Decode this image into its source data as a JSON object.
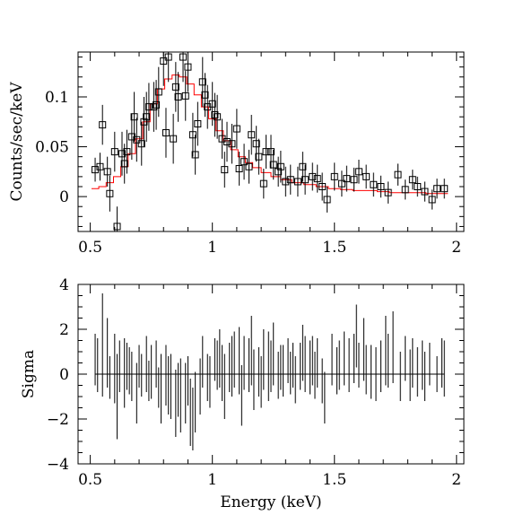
{
  "chart_data": [
    {
      "type": "scatter",
      "panel": "spectrum",
      "xlabel": "",
      "ylabel": "Counts/sec/keV",
      "xlim": [
        0.45,
        2.03
      ],
      "ylim": [
        -0.035,
        0.145
      ],
      "xticks": [
        "0.5",
        "1",
        "1.5",
        "2"
      ],
      "xtick_values": [
        0.5,
        1.0,
        1.5,
        2.0
      ],
      "yticks": [
        "0",
        "0.05",
        "0.1"
      ],
      "ytick_values": [
        0,
        0.05,
        0.1
      ],
      "grid": false,
      "series": [
        {
          "role": "data",
          "marker": "open-square",
          "color": "#000000",
          "points": [
            [
              0.52,
              0.027,
              0.012
            ],
            [
              0.54,
              0.03,
              0.014
            ],
            [
              0.55,
              0.072,
              0.02
            ],
            [
              0.57,
              0.025,
              0.015
            ],
            [
              0.58,
              0.003,
              0.018
            ],
            [
              0.6,
              0.045,
              0.02
            ],
            [
              0.61,
              -0.03,
              0.02
            ],
            [
              0.63,
              0.043,
              0.022
            ],
            [
              0.64,
              0.033,
              0.02
            ],
            [
              0.65,
              0.045,
              0.022
            ],
            [
              0.67,
              0.06,
              0.023
            ],
            [
              0.68,
              0.08,
              0.025
            ],
            [
              0.69,
              0.057,
              0.022
            ],
            [
              0.71,
              0.053,
              0.022
            ],
            [
              0.72,
              0.075,
              0.025
            ],
            [
              0.73,
              0.08,
              0.025
            ],
            [
              0.74,
              0.09,
              0.024
            ],
            [
              0.76,
              0.09,
              0.025
            ],
            [
              0.77,
              0.092,
              0.025
            ],
            [
              0.78,
              0.105,
              0.025
            ],
            [
              0.8,
              0.136,
              0.025
            ],
            [
              0.81,
              0.064,
              0.025
            ],
            [
              0.82,
              0.14,
              0.025
            ],
            [
              0.84,
              0.058,
              0.025
            ],
            [
              0.85,
              0.11,
              0.025
            ],
            [
              0.86,
              0.1,
              0.025
            ],
            [
              0.88,
              0.14,
              0.025
            ],
            [
              0.89,
              0.101,
              0.025
            ],
            [
              0.9,
              0.13,
              0.025
            ],
            [
              0.92,
              0.062,
              0.022
            ],
            [
              0.93,
              0.042,
              0.02
            ],
            [
              0.94,
              0.073,
              0.022
            ],
            [
              0.96,
              0.115,
              0.025
            ],
            [
              0.97,
              0.102,
              0.022
            ],
            [
              0.98,
              0.09,
              0.022
            ],
            [
              1.0,
              0.093,
              0.022
            ],
            [
              1.01,
              0.082,
              0.022
            ],
            [
              1.02,
              0.08,
              0.022
            ],
            [
              1.04,
              0.058,
              0.02
            ],
            [
              1.05,
              0.027,
              0.018
            ],
            [
              1.06,
              0.055,
              0.02
            ],
            [
              1.08,
              0.053,
              0.02
            ],
            [
              1.1,
              0.068,
              0.02
            ],
            [
              1.11,
              0.028,
              0.017
            ],
            [
              1.13,
              0.035,
              0.018
            ],
            [
              1.15,
              0.03,
              0.017
            ],
            [
              1.16,
              0.062,
              0.02
            ],
            [
              1.18,
              0.053,
              0.018
            ],
            [
              1.19,
              0.04,
              0.018
            ],
            [
              1.21,
              0.013,
              0.015
            ],
            [
              1.22,
              0.045,
              0.017
            ],
            [
              1.24,
              0.045,
              0.017
            ],
            [
              1.25,
              0.032,
              0.015
            ],
            [
              1.27,
              0.025,
              0.015
            ],
            [
              1.28,
              0.03,
              0.016
            ],
            [
              1.3,
              0.015,
              0.015
            ],
            [
              1.32,
              0.017,
              0.015
            ],
            [
              1.35,
              0.015,
              0.015
            ],
            [
              1.37,
              0.03,
              0.015
            ],
            [
              1.38,
              0.017,
              0.015
            ],
            [
              1.41,
              0.02,
              0.014
            ],
            [
              1.43,
              0.018,
              0.014
            ],
            [
              1.45,
              0.01,
              0.014
            ],
            [
              1.47,
              -0.003,
              0.013
            ],
            [
              1.5,
              0.02,
              0.014
            ],
            [
              1.53,
              0.013,
              0.013
            ],
            [
              1.55,
              0.018,
              0.013
            ],
            [
              1.58,
              0.017,
              0.012
            ],
            [
              1.6,
              0.025,
              0.012
            ],
            [
              1.63,
              0.02,
              0.012
            ],
            [
              1.66,
              0.012,
              0.012
            ],
            [
              1.69,
              0.01,
              0.011
            ],
            [
              1.72,
              0.004,
              0.011
            ],
            [
              1.76,
              0.022,
              0.011
            ],
            [
              1.79,
              0.007,
              0.01
            ],
            [
              1.82,
              0.017,
              0.01
            ],
            [
              1.84,
              0.01,
              0.01
            ],
            [
              1.87,
              0.005,
              0.01
            ],
            [
              1.9,
              -0.003,
              0.01
            ],
            [
              1.92,
              0.008,
              0.01
            ],
            [
              1.95,
              0.008,
              0.01
            ]
          ]
        },
        {
          "role": "model",
          "style": "histogram-step",
          "color": "#ff0000",
          "x": [
            0.52,
            0.55,
            0.58,
            0.61,
            0.64,
            0.67,
            0.7,
            0.73,
            0.76,
            0.79,
            0.82,
            0.85,
            0.88,
            0.91,
            0.94,
            0.97,
            1.0,
            1.03,
            1.06,
            1.09,
            1.12,
            1.15,
            1.18,
            1.22,
            1.26,
            1.3,
            1.35,
            1.4,
            1.45,
            1.5,
            1.55,
            1.6,
            1.65,
            1.7,
            1.75,
            1.8,
            1.85,
            1.9,
            1.95
          ],
          "y": [
            0.008,
            0.01,
            0.014,
            0.02,
            0.03,
            0.043,
            0.058,
            0.075,
            0.093,
            0.108,
            0.118,
            0.122,
            0.12,
            0.113,
            0.102,
            0.09,
            0.078,
            0.066,
            0.056,
            0.047,
            0.04,
            0.034,
            0.029,
            0.024,
            0.02,
            0.017,
            0.014,
            0.012,
            0.01,
            0.008,
            0.007,
            0.006,
            0.006,
            0.005,
            0.004,
            0.004,
            0.004,
            0.003,
            0.003
          ]
        }
      ]
    },
    {
      "type": "bar",
      "panel": "residuals",
      "xlabel": "Energy (keV)",
      "ylabel": "Sigma",
      "xlim": [
        0.45,
        2.03
      ],
      "ylim": [
        -4,
        4
      ],
      "xticks": [
        "0.5",
        "1",
        "1.5",
        "2"
      ],
      "xtick_values": [
        0.5,
        1.0,
        1.5,
        2.0
      ],
      "yticks": [
        "−4",
        "−2",
        "0",
        "2",
        "4"
      ],
      "ytick_values": [
        -4,
        -2,
        0,
        2,
        4
      ],
      "grid": false,
      "zero_line": true,
      "series": [
        {
          "role": "residual",
          "style": "vertical-line",
          "color": "#000000",
          "values": [
            [
              0.52,
              -0.5,
              1.8
            ],
            [
              0.53,
              -0.8,
              1.6
            ],
            [
              0.55,
              -1.0,
              3.6
            ],
            [
              0.57,
              -0.6,
              2.5
            ],
            [
              0.58,
              -1.1,
              0.8
            ],
            [
              0.6,
              -1.3,
              1.8
            ],
            [
              0.61,
              -2.9,
              0.9
            ],
            [
              0.62,
              -0.8,
              1.5
            ],
            [
              0.64,
              -1.5,
              1.6
            ],
            [
              0.65,
              -0.7,
              1.4
            ],
            [
              0.66,
              -0.9,
              1.2
            ],
            [
              0.67,
              -1.2,
              1.0
            ],
            [
              0.69,
              -2.2,
              0.5
            ],
            [
              0.7,
              -0.6,
              1.3
            ],
            [
              0.71,
              -1.0,
              0.9
            ],
            [
              0.73,
              -0.8,
              1.7
            ],
            [
              0.74,
              -1.2,
              0.6
            ],
            [
              0.75,
              -1.1,
              1.3
            ],
            [
              0.77,
              -0.6,
              1.5
            ],
            [
              0.78,
              -1.5,
              0.3
            ],
            [
              0.79,
              -2.2,
              0.9
            ],
            [
              0.81,
              -1.4,
              1.3
            ],
            [
              0.82,
              -1.8,
              0.8
            ],
            [
              0.83,
              -2.0,
              0.9
            ],
            [
              0.85,
              -2.8,
              0.2
            ],
            [
              0.86,
              -1.9,
              0.5
            ],
            [
              0.87,
              -2.6,
              0.7
            ],
            [
              0.89,
              -2.2,
              0.5
            ],
            [
              0.9,
              -1.4,
              0.8
            ],
            [
              0.91,
              -3.2,
              -0.2
            ],
            [
              0.92,
              -3.4,
              -0.6
            ],
            [
              0.93,
              -2.6,
              0.1
            ],
            [
              0.95,
              -1.8,
              0.7
            ],
            [
              0.96,
              -0.6,
              1.7
            ],
            [
              0.98,
              -1.2,
              0.9
            ],
            [
              0.99,
              -1.5,
              0.8
            ],
            [
              1.01,
              -0.3,
              1.6
            ],
            [
              1.02,
              -0.7,
              1.5
            ],
            [
              1.03,
              -0.6,
              2.0
            ],
            [
              1.04,
              -1.2,
              1.3
            ],
            [
              1.05,
              -2.0,
              0.9
            ],
            [
              1.07,
              -0.8,
              1.4
            ],
            [
              1.08,
              -1.0,
              1.7
            ],
            [
              1.09,
              -0.6,
              1.9
            ],
            [
              1.11,
              -0.9,
              2.1
            ],
            [
              1.12,
              -2.3,
              0.4
            ],
            [
              1.13,
              -0.7,
              1.7
            ],
            [
              1.15,
              -0.8,
              1.6
            ],
            [
              1.16,
              -0.5,
              2.6
            ],
            [
              1.17,
              -1.6,
              1.1
            ],
            [
              1.19,
              -1.0,
              1.2
            ],
            [
              1.2,
              -1.5,
              0.8
            ],
            [
              1.21,
              -0.7,
              2.0
            ],
            [
              1.23,
              -1.2,
              1.9
            ],
            [
              1.24,
              -0.8,
              1.5
            ],
            [
              1.25,
              -0.5,
              2.3
            ],
            [
              1.27,
              -1.1,
              1.0
            ],
            [
              1.28,
              -0.7,
              1.3
            ],
            [
              1.29,
              -1.0,
              1.3
            ],
            [
              1.31,
              -0.4,
              1.6
            ],
            [
              1.32,
              -0.9,
              1.0
            ],
            [
              1.33,
              -0.6,
              1.4
            ],
            [
              1.34,
              -1.3,
              0.8
            ],
            [
              1.36,
              -0.7,
              1.4
            ],
            [
              1.37,
              -0.3,
              2.2
            ],
            [
              1.38,
              -0.8,
              1.7
            ],
            [
              1.4,
              -0.9,
              1.5
            ],
            [
              1.41,
              -0.5,
              1.7
            ],
            [
              1.42,
              -1.1,
              1.0
            ],
            [
              1.43,
              -0.6,
              1.6
            ],
            [
              1.45,
              -1.3,
              0.7
            ],
            [
              1.46,
              -2.2,
              0.1
            ],
            [
              1.49,
              -0.5,
              1.8
            ],
            [
              1.51,
              -0.9,
              1.2
            ],
            [
              1.52,
              -0.7,
              1.5
            ],
            [
              1.54,
              -0.5,
              1.9
            ],
            [
              1.56,
              -0.8,
              1.6
            ],
            [
              1.58,
              -0.4,
              1.8
            ],
            [
              1.59,
              0.3,
              3.1
            ],
            [
              1.6,
              -0.6,
              1.4
            ],
            [
              1.62,
              -0.3,
              2.5
            ],
            [
              1.63,
              -0.9,
              1.3
            ],
            [
              1.65,
              -1.1,
              1.3
            ],
            [
              1.67,
              -1.2,
              1.2
            ],
            [
              1.69,
              -0.8,
              1.5
            ],
            [
              1.71,
              -0.5,
              2.6
            ],
            [
              1.72,
              -0.6,
              1.8
            ],
            [
              1.74,
              -0.4,
              2.8
            ],
            [
              1.77,
              -1.2,
              1.0
            ],
            [
              1.79,
              -0.3,
              1.7
            ],
            [
              1.81,
              -1.2,
              1.1
            ],
            [
              1.82,
              -0.6,
              1.6
            ],
            [
              1.84,
              -1.0,
              1.2
            ],
            [
              1.86,
              -0.7,
              1.5
            ],
            [
              1.87,
              -1.2,
              1.0
            ],
            [
              1.89,
              -0.5,
              1.4
            ],
            [
              1.92,
              -0.8,
              0.8
            ],
            [
              1.94,
              -0.6,
              1.6
            ],
            [
              1.95,
              -1.0,
              1.5
            ]
          ]
        }
      ]
    }
  ]
}
